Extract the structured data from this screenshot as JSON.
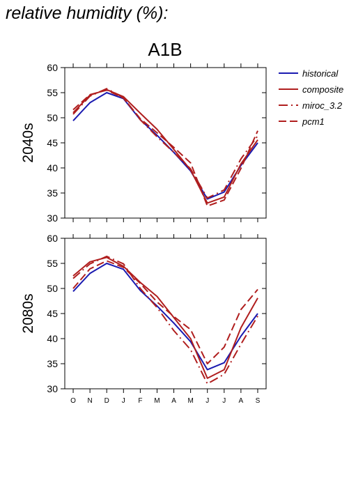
{
  "page_title": "relative humidity (%):",
  "colors": {
    "historical": "#1a1ab0",
    "model": "#b01e1e",
    "frame": "#000000"
  },
  "chart_data": {
    "type": "line",
    "title": "A1B",
    "x": [
      "O",
      "N",
      "D",
      "J",
      "F",
      "M",
      "A",
      "M",
      "J",
      "J",
      "A",
      "S"
    ],
    "ylim": [
      30,
      60
    ],
    "yticks": [
      30,
      35,
      40,
      45,
      50,
      55,
      60
    ],
    "legend": {
      "placement": "right",
      "entries": [
        {
          "key": "historical",
          "label": "historical",
          "style": "solid"
        },
        {
          "key": "composite",
          "label": "composite",
          "style": "solid"
        },
        {
          "key": "miroc",
          "label": "miroc_3.2",
          "style": "dashdot"
        },
        {
          "key": "pcm1",
          "label": "pcm1",
          "style": "dashed"
        }
      ]
    },
    "panels": [
      {
        "label": "2040s",
        "series": [
          {
            "key": "historical",
            "values": [
              49.4,
              53.0,
              55.0,
              53.8,
              49.6,
              46.5,
              43.1,
              39.4,
              33.8,
              35.2,
              40.5,
              45.0
            ]
          },
          {
            "key": "composite",
            "values": [
              51.0,
              54.5,
              55.6,
              54.2,
              50.9,
              47.7,
              43.7,
              39.6,
              33.0,
              34.2,
              40.8,
              45.6
            ]
          },
          {
            "key": "miroc",
            "values": [
              50.7,
              54.3,
              55.8,
              54.0,
              49.6,
              46.2,
              43.1,
              39.8,
              34.0,
              35.6,
              41.8,
              46.4
            ]
          },
          {
            "key": "pcm1",
            "values": [
              51.6,
              54.6,
              55.5,
              53.9,
              49.8,
              47.0,
              44.1,
              41.0,
              32.4,
              33.6,
              39.9,
              47.4
            ]
          }
        ]
      },
      {
        "label": "2080s",
        "series": [
          {
            "key": "historical",
            "values": [
              49.4,
              53.0,
              55.0,
              53.8,
              49.6,
              46.5,
              43.1,
              39.4,
              33.8,
              35.2,
              40.5,
              45.0
            ]
          },
          {
            "key": "composite",
            "values": [
              52.5,
              55.3,
              56.2,
              54.4,
              51.2,
              48.4,
              44.2,
              40.0,
              32.1,
              33.8,
              42.2,
              48.1
            ]
          },
          {
            "key": "miroc",
            "values": [
              52.0,
              54.9,
              56.4,
              54.9,
              50.0,
              46.2,
              41.6,
              37.8,
              31.0,
              32.9,
              38.9,
              44.5
            ]
          },
          {
            "key": "pcm1",
            "values": [
              50.0,
              53.9,
              55.5,
              54.2,
              51.0,
              47.3,
              44.4,
              41.8,
              35.0,
              38.3,
              45.8,
              49.8
            ]
          }
        ]
      }
    ]
  }
}
